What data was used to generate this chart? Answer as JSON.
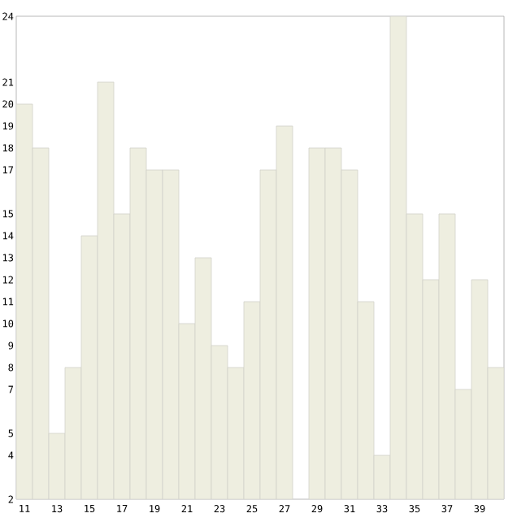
{
  "chart_data": {
    "type": "bar",
    "categories": [
      "11",
      null,
      "13",
      null,
      "15",
      null,
      "17",
      null,
      "19",
      null,
      "21",
      null,
      "23",
      null,
      "25",
      null,
      "27",
      null,
      "29",
      null,
      "31",
      null,
      "33",
      null,
      "35",
      null,
      "37",
      null,
      "39",
      null
    ],
    "values": [
      20,
      18,
      5,
      8,
      14,
      21,
      15,
      18,
      17,
      17,
      10,
      13,
      9,
      8,
      11,
      17,
      19,
      null,
      18,
      18,
      17,
      11,
      4,
      24,
      15,
      12,
      15,
      7,
      12,
      8
    ],
    "color": "#eeeee0",
    "ylim": [
      2,
      24
    ],
    "yticks": [
      2,
      4,
      5,
      7,
      8,
      9,
      10,
      11,
      12,
      13,
      14,
      15,
      17,
      18,
      19,
      20,
      21,
      24
    ],
    "grid": false
  }
}
